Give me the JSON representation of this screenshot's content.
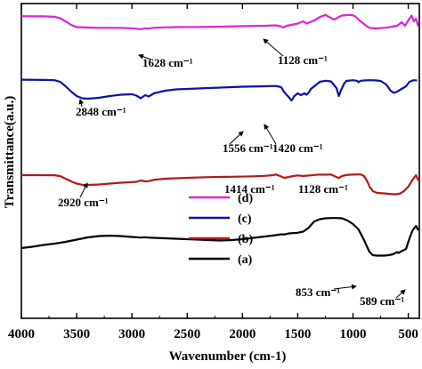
{
  "chart_data": {
    "type": "line",
    "xlabel": "Wavenumber (cm-1)",
    "ylabel": "Transmittance(a.u.)",
    "xlim": [
      4000,
      400
    ],
    "x_reversed": true,
    "xticks": [
      "4000",
      "3500",
      "3000",
      "2500",
      "2000",
      "1500",
      "1000",
      "500"
    ],
    "grid": false,
    "legend_position": "center",
    "series": [
      {
        "name": "(d)",
        "color": "#dd22dd",
        "points": [
          [
            4000,
            0.2
          ],
          [
            3800,
            0.4
          ],
          [
            3700,
            0.9
          ],
          [
            3650,
            2.5
          ],
          [
            3600,
            6
          ],
          [
            3550,
            10
          ],
          [
            3500,
            12.5
          ],
          [
            3400,
            13
          ],
          [
            3300,
            13.3
          ],
          [
            3200,
            13.4
          ],
          [
            3100,
            13.3
          ],
          [
            2960,
            14.2
          ],
          [
            2920,
            14.8
          ],
          [
            2880,
            13.8
          ],
          [
            2850,
            14.2
          ],
          [
            2800,
            13.2
          ],
          [
            2700,
            12.8
          ],
          [
            2600,
            12.5
          ],
          [
            2400,
            12.3
          ],
          [
            2200,
            12
          ],
          [
            2000,
            11.4
          ],
          [
            1800,
            11
          ],
          [
            1700,
            10.5
          ],
          [
            1660,
            11.5
          ],
          [
            1628,
            12.8
          ],
          [
            1600,
            11
          ],
          [
            1560,
            10
          ],
          [
            1500,
            8.5
          ],
          [
            1450,
            6
          ],
          [
            1420,
            8.5
          ],
          [
            1390,
            7
          ],
          [
            1350,
            5
          ],
          [
            1300,
            1.2
          ],
          [
            1250,
            -1.2
          ],
          [
            1210,
            1.5
          ],
          [
            1170,
            4
          ],
          [
            1128,
            1
          ],
          [
            1100,
            -0.5
          ],
          [
            1060,
            -1
          ],
          [
            1010,
            -1.2
          ],
          [
            980,
            0.5
          ],
          [
            950,
            4
          ],
          [
            900,
            9
          ],
          [
            870,
            12
          ],
          [
            850,
            13.3
          ],
          [
            800,
            14
          ],
          [
            700,
            13.2
          ],
          [
            600,
            11
          ],
          [
            560,
            7
          ],
          [
            530,
            11
          ],
          [
            500,
            5
          ],
          [
            470,
            -0.5
          ],
          [
            450,
            6
          ],
          [
            430,
            3
          ],
          [
            410,
            12
          ]
        ]
      },
      {
        "name": "(c)",
        "color": "#0a12aa",
        "points": [
          [
            4000,
            0.6
          ],
          [
            3800,
            0.9
          ],
          [
            3700,
            1.2
          ],
          [
            3650,
            3
          ],
          [
            3600,
            8
          ],
          [
            3550,
            14
          ],
          [
            3500,
            19
          ],
          [
            3450,
            21.5
          ],
          [
            3400,
            22
          ],
          [
            3300,
            21
          ],
          [
            3200,
            19
          ],
          [
            3100,
            17.5
          ],
          [
            3000,
            17
          ],
          [
            2960,
            18.5
          ],
          [
            2920,
            21.5
          ],
          [
            2880,
            18
          ],
          [
            2848,
            19.5
          ],
          [
            2800,
            16
          ],
          [
            2700,
            13
          ],
          [
            2600,
            11.5
          ],
          [
            2400,
            10.5
          ],
          [
            2200,
            9.5
          ],
          [
            2000,
            8.5
          ],
          [
            1800,
            8
          ],
          [
            1700,
            7.7
          ],
          [
            1650,
            9
          ],
          [
            1620,
            15
          ],
          [
            1590,
            19
          ],
          [
            1556,
            24
          ],
          [
            1530,
            19
          ],
          [
            1500,
            16
          ],
          [
            1470,
            18
          ],
          [
            1440,
            16
          ],
          [
            1420,
            17.5
          ],
          [
            1400,
            15
          ],
          [
            1380,
            11
          ],
          [
            1350,
            8
          ],
          [
            1300,
            3
          ],
          [
            1250,
            1.8
          ],
          [
            1200,
            2.5
          ],
          [
            1150,
            10
          ],
          [
            1128,
            19
          ],
          [
            1110,
            13
          ],
          [
            1080,
            5
          ],
          [
            1060,
            2
          ],
          [
            1020,
            1.5
          ],
          [
            1000,
            1.2
          ],
          [
            960,
            2
          ],
          [
            950,
            3.5
          ],
          [
            930,
            1.8
          ],
          [
            900,
            1.5
          ],
          [
            860,
            1.2
          ],
          [
            800,
            1.4
          ],
          [
            750,
            2
          ],
          [
            700,
            6
          ],
          [
            660,
            13
          ],
          [
            630,
            15.5
          ],
          [
            600,
            14
          ],
          [
            560,
            11
          ],
          [
            520,
            8
          ],
          [
            490,
            3
          ],
          [
            450,
            1.2
          ],
          [
            420,
            1.5
          ]
        ]
      },
      {
        "name": "(b)",
        "color": "#b31919",
        "points": [
          [
            4000,
            1
          ],
          [
            3800,
            1
          ],
          [
            3700,
            1.1
          ],
          [
            3650,
            2
          ],
          [
            3600,
            5
          ],
          [
            3550,
            8
          ],
          [
            3500,
            10.5
          ],
          [
            3450,
            11.8
          ],
          [
            3400,
            12
          ],
          [
            3300,
            11.5
          ],
          [
            3200,
            10.5
          ],
          [
            3100,
            9.5
          ],
          [
            3000,
            8.8
          ],
          [
            2960,
            8.5
          ],
          [
            2920,
            7
          ],
          [
            2880,
            8
          ],
          [
            2850,
            7.8
          ],
          [
            2800,
            6.2
          ],
          [
            2700,
            5
          ],
          [
            2500,
            4
          ],
          [
            2300,
            3.2
          ],
          [
            2100,
            2.8
          ],
          [
            1900,
            2.3
          ],
          [
            1800,
            1.8
          ],
          [
            1720,
            1
          ],
          [
            1700,
            0.2
          ],
          [
            1660,
            2
          ],
          [
            1620,
            4
          ],
          [
            1580,
            3
          ],
          [
            1540,
            2
          ],
          [
            1500,
            1.3
          ],
          [
            1450,
            2
          ],
          [
            1414,
            1.5
          ],
          [
            1380,
            1.2
          ],
          [
            1350,
            0.8
          ],
          [
            1300,
            0.3
          ],
          [
            1250,
            0.5
          ],
          [
            1200,
            0.2
          ],
          [
            1160,
            2.5
          ],
          [
            1128,
            4.2
          ],
          [
            1100,
            2
          ],
          [
            1050,
            0.6
          ],
          [
            1000,
            0.4
          ],
          [
            960,
            0.2
          ],
          [
            930,
            0.2
          ],
          [
            900,
            2
          ],
          [
            870,
            8
          ],
          [
            850,
            14
          ],
          [
            820,
            19
          ],
          [
            780,
            21
          ],
          [
            720,
            21.5
          ],
          [
            680,
            22
          ],
          [
            620,
            22.5
          ],
          [
            580,
            22
          ],
          [
            540,
            19
          ],
          [
            500,
            14
          ],
          [
            460,
            6
          ],
          [
            430,
            1
          ],
          [
            410,
            7
          ]
        ]
      },
      {
        "name": "(a)",
        "color": "#000000",
        "points": [
          [
            4000,
            21
          ],
          [
            3900,
            19.5
          ],
          [
            3800,
            17.5
          ],
          [
            3700,
            16
          ],
          [
            3600,
            14
          ],
          [
            3500,
            11.5
          ],
          [
            3400,
            9
          ],
          [
            3300,
            7.5
          ],
          [
            3200,
            7
          ],
          [
            3100,
            7.5
          ],
          [
            3000,
            8.5
          ],
          [
            2960,
            8.8
          ],
          [
            2920,
            9.2
          ],
          [
            2880,
            8.8
          ],
          [
            2850,
            9.2
          ],
          [
            2800,
            9.5
          ],
          [
            2700,
            10
          ],
          [
            2500,
            11
          ],
          [
            2300,
            12
          ],
          [
            2200,
            12.5
          ],
          [
            2100,
            12
          ],
          [
            2000,
            11
          ],
          [
            1900,
            9.5
          ],
          [
            1800,
            8
          ],
          [
            1700,
            6.5
          ],
          [
            1650,
            5.5
          ],
          [
            1620,
            5.7
          ],
          [
            1580,
            4.5
          ],
          [
            1500,
            3.8
          ],
          [
            1450,
            2.5
          ],
          [
            1400,
            -2
          ],
          [
            1350,
            -9
          ],
          [
            1300,
            -11.5
          ],
          [
            1250,
            -12.5
          ],
          [
            1200,
            -12.8
          ],
          [
            1150,
            -12.8
          ],
          [
            1100,
            -12.5
          ],
          [
            1050,
            -10
          ],
          [
            1000,
            -6
          ],
          [
            950,
            0
          ],
          [
            900,
            12
          ],
          [
            853,
            25
          ],
          [
            820,
            29
          ],
          [
            780,
            29.5
          ],
          [
            720,
            29.5
          ],
          [
            680,
            29
          ],
          [
            640,
            28
          ],
          [
            600,
            25.5
          ],
          [
            589,
            26.5
          ],
          [
            560,
            24.5
          ],
          [
            520,
            22
          ],
          [
            500,
            14
          ],
          [
            480,
            7
          ],
          [
            460,
            1
          ],
          [
            430,
            -4
          ],
          [
            410,
            1
          ]
        ]
      }
    ],
    "annotations": [
      {
        "text": "1628 cm⁻¹",
        "x": 1628,
        "series": "(d)"
      },
      {
        "text": "1128 cm⁻¹",
        "x": 1128,
        "series": "(d)"
      },
      {
        "text": "2848 cm⁻¹",
        "x": 2848,
        "series": "(c)"
      },
      {
        "text": "1556 cm⁻¹",
        "x": 1556,
        "series": "(c)"
      },
      {
        "text": "1420 cm⁻¹",
        "x": 1420,
        "series": "(c)"
      },
      {
        "text": "1414 cm⁻¹",
        "x": 1414,
        "series": "(b)"
      },
      {
        "text": "1128 cm⁻¹",
        "x": 1128,
        "series": "(b)"
      },
      {
        "text": "2920 cm⁻¹",
        "x": 2920,
        "series": "(b)"
      },
      {
        "text": "853 cm⁻¹",
        "x": 853,
        "series": "(a)"
      },
      {
        "text": "589 cm⁻¹",
        "x": 589,
        "series": "(a)"
      }
    ]
  }
}
